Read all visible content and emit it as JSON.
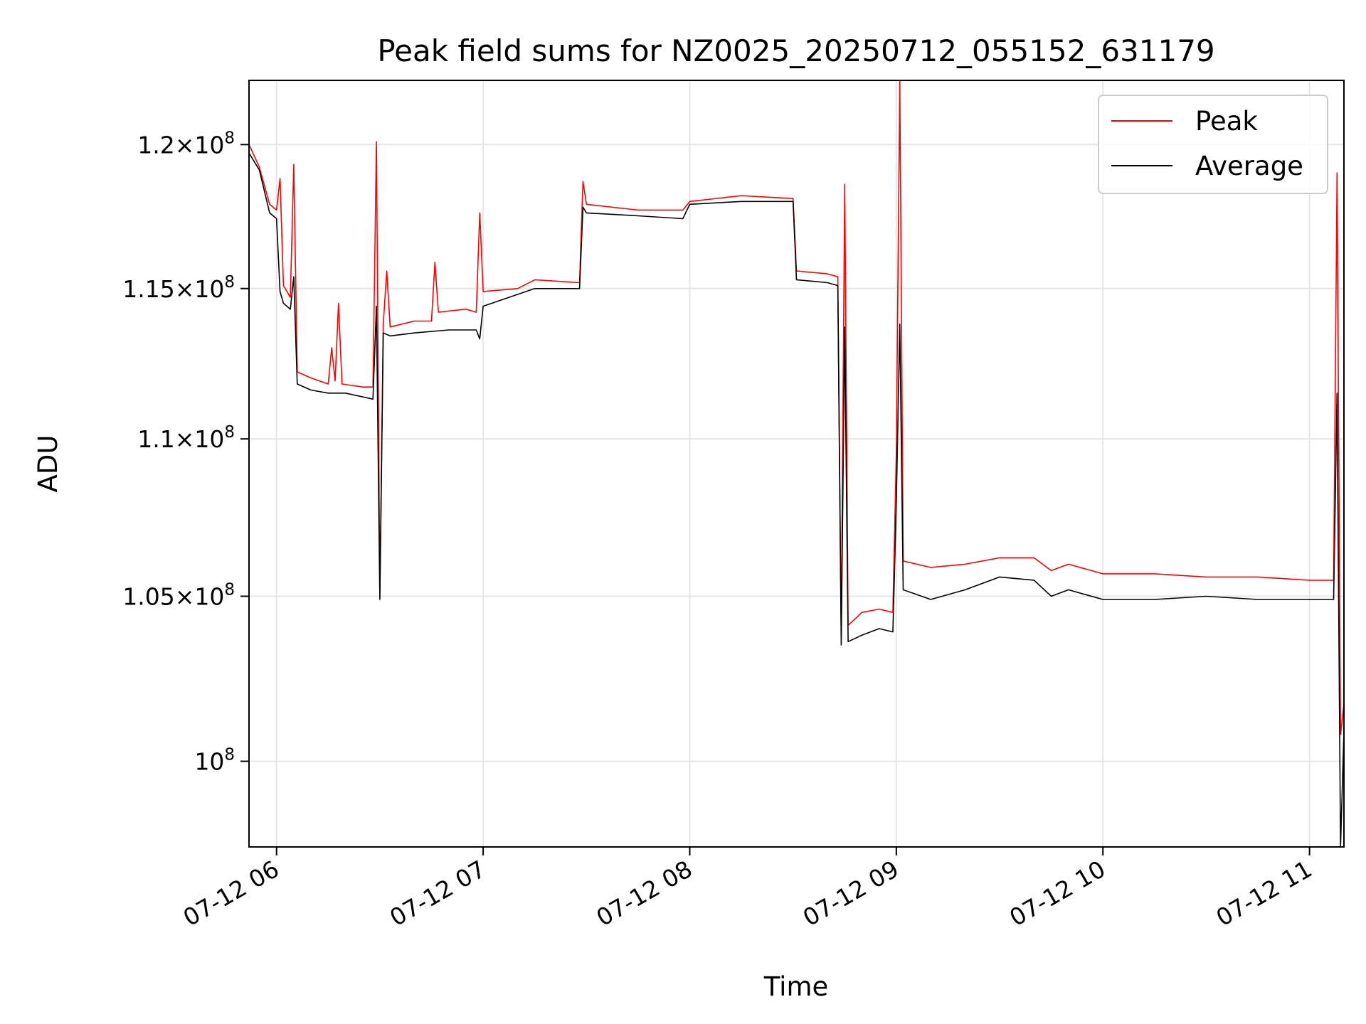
{
  "chart_data": {
    "type": "line",
    "title": "Peak field sums for NZ0025_20250712_055152_631179",
    "xlabel": "Time",
    "ylabel": "ADU",
    "yscale": "log",
    "grid": true,
    "legend_position": "top-right",
    "xlim": [
      "2025-07-12 05:52",
      "2025-07-12 11:10"
    ],
    "ylim": [
      97500000,
      122300000
    ],
    "x_ticks": [
      {
        "value": "2025-07-12 06:00",
        "label": "07-12 06"
      },
      {
        "value": "2025-07-12 07:00",
        "label": "07-12 07"
      },
      {
        "value": "2025-07-12 08:00",
        "label": "07-12 08"
      },
      {
        "value": "2025-07-12 09:00",
        "label": "07-12 09"
      },
      {
        "value": "2025-07-12 10:00",
        "label": "07-12 10"
      },
      {
        "value": "2025-07-12 11:00",
        "label": "07-12 11"
      }
    ],
    "y_ticks": [
      {
        "value": 100000000,
        "mantissa": "",
        "exp": "8"
      },
      {
        "value": 105000000,
        "mantissa": "1.05",
        "exp": "8"
      },
      {
        "value": 110000000,
        "mantissa": "1.1",
        "exp": "8"
      },
      {
        "value": 115000000,
        "mantissa": "1.15",
        "exp": "8"
      },
      {
        "value": 120000000,
        "mantissa": "1.2",
        "exp": "8"
      }
    ],
    "series": [
      {
        "name": "Peak",
        "color": "#ff0000",
        "points": [
          [
            "2025-07-12 05:52",
            120000000
          ],
          [
            "2025-07-12 05:55",
            119200000
          ],
          [
            "2025-07-12 05:58",
            117900000
          ],
          [
            "2025-07-12 06:00",
            117700000
          ],
          [
            "2025-07-12 06:01",
            118800000
          ],
          [
            "2025-07-12 06:02",
            115100000
          ],
          [
            "2025-07-12 06:04",
            114700000
          ],
          [
            "2025-07-12 06:05",
            119300000
          ],
          [
            "2025-07-12 06:06",
            112200000
          ],
          [
            "2025-07-12 06:10",
            112000000
          ],
          [
            "2025-07-12 06:15",
            111800000
          ],
          [
            "2025-07-12 06:16",
            113000000
          ],
          [
            "2025-07-12 06:17",
            111900000
          ],
          [
            "2025-07-12 06:18",
            114500000
          ],
          [
            "2025-07-12 06:19",
            111800000
          ],
          [
            "2025-07-12 06:25",
            111700000
          ],
          [
            "2025-07-12 06:28",
            111700000
          ],
          [
            "2025-07-12 06:29",
            120100000
          ],
          [
            "2025-07-12 06:30",
            105100000
          ],
          [
            "2025-07-12 06:31",
            113800000
          ],
          [
            "2025-07-12 06:32",
            115600000
          ],
          [
            "2025-07-12 06:33",
            113700000
          ],
          [
            "2025-07-12 06:40",
            113900000
          ],
          [
            "2025-07-12 06:45",
            113900000
          ],
          [
            "2025-07-12 06:46",
            115900000
          ],
          [
            "2025-07-12 06:47",
            114200000
          ],
          [
            "2025-07-12 06:55",
            114300000
          ],
          [
            "2025-07-12 06:58",
            114200000
          ],
          [
            "2025-07-12 06:59",
            117600000
          ],
          [
            "2025-07-12 07:00",
            114900000
          ],
          [
            "2025-07-12 07:10",
            115000000
          ],
          [
            "2025-07-12 07:15",
            115300000
          ],
          [
            "2025-07-12 07:28",
            115200000
          ],
          [
            "2025-07-12 07:29",
            118700000
          ],
          [
            "2025-07-12 07:30",
            117900000
          ],
          [
            "2025-07-12 07:45",
            117700000
          ],
          [
            "2025-07-12 07:58",
            117700000
          ],
          [
            "2025-07-12 08:00",
            118000000
          ],
          [
            "2025-07-12 08:15",
            118200000
          ],
          [
            "2025-07-12 08:30",
            118100000
          ],
          [
            "2025-07-12 08:31",
            115600000
          ],
          [
            "2025-07-12 08:40",
            115500000
          ],
          [
            "2025-07-12 08:43",
            115400000
          ],
          [
            "2025-07-12 08:44",
            103800000
          ],
          [
            "2025-07-12 08:45",
            118600000
          ],
          [
            "2025-07-12 08:46",
            104100000
          ],
          [
            "2025-07-12 08:50",
            104500000
          ],
          [
            "2025-07-12 08:55",
            104600000
          ],
          [
            "2025-07-12 08:59",
            104500000
          ],
          [
            "2025-07-12 09:00",
            109500000
          ],
          [
            "2025-07-12 09:01",
            122300000
          ],
          [
            "2025-07-12 09:02",
            106100000
          ],
          [
            "2025-07-12 09:10",
            105900000
          ],
          [
            "2025-07-12 09:20",
            106000000
          ],
          [
            "2025-07-12 09:30",
            106200000
          ],
          [
            "2025-07-12 09:40",
            106200000
          ],
          [
            "2025-07-12 09:45",
            105800000
          ],
          [
            "2025-07-12 09:50",
            106000000
          ],
          [
            "2025-07-12 10:00",
            105700000
          ],
          [
            "2025-07-12 10:15",
            105700000
          ],
          [
            "2025-07-12 10:30",
            105600000
          ],
          [
            "2025-07-12 10:45",
            105600000
          ],
          [
            "2025-07-12 11:00",
            105500000
          ],
          [
            "2025-07-12 11:07",
            105500000
          ],
          [
            "2025-07-12 11:08",
            119000000
          ],
          [
            "2025-07-12 11:09",
            100800000
          ],
          [
            "2025-07-12 11:10",
            101700000
          ]
        ]
      },
      {
        "name": "Average",
        "color": "#000000",
        "points": [
          [
            "2025-07-12 05:52",
            119700000
          ],
          [
            "2025-07-12 05:55",
            119100000
          ],
          [
            "2025-07-12 05:58",
            117600000
          ],
          [
            "2025-07-12 06:00",
            117400000
          ],
          [
            "2025-07-12 06:01",
            114900000
          ],
          [
            "2025-07-12 06:02",
            114500000
          ],
          [
            "2025-07-12 06:04",
            114300000
          ],
          [
            "2025-07-12 06:05",
            115400000
          ],
          [
            "2025-07-12 06:06",
            111800000
          ],
          [
            "2025-07-12 06:10",
            111600000
          ],
          [
            "2025-07-12 06:15",
            111500000
          ],
          [
            "2025-07-12 06:20",
            111500000
          ],
          [
            "2025-07-12 06:28",
            111300000
          ],
          [
            "2025-07-12 06:29",
            114400000
          ],
          [
            "2025-07-12 06:30",
            104900000
          ],
          [
            "2025-07-12 06:31",
            113500000
          ],
          [
            "2025-07-12 06:33",
            113400000
          ],
          [
            "2025-07-12 06:40",
            113500000
          ],
          [
            "2025-07-12 06:50",
            113600000
          ],
          [
            "2025-07-12 06:58",
            113600000
          ],
          [
            "2025-07-12 06:59",
            113300000
          ],
          [
            "2025-07-12 07:00",
            114400000
          ],
          [
            "2025-07-12 07:10",
            114800000
          ],
          [
            "2025-07-12 07:15",
            115000000
          ],
          [
            "2025-07-12 07:28",
            115000000
          ],
          [
            "2025-07-12 07:29",
            117800000
          ],
          [
            "2025-07-12 07:30",
            117600000
          ],
          [
            "2025-07-12 07:45",
            117500000
          ],
          [
            "2025-07-12 07:58",
            117400000
          ],
          [
            "2025-07-12 08:00",
            117900000
          ],
          [
            "2025-07-12 08:15",
            118000000
          ],
          [
            "2025-07-12 08:30",
            118000000
          ],
          [
            "2025-07-12 08:31",
            115300000
          ],
          [
            "2025-07-12 08:40",
            115200000
          ],
          [
            "2025-07-12 08:43",
            115100000
          ],
          [
            "2025-07-12 08:44",
            103500000
          ],
          [
            "2025-07-12 08:45",
            113700000
          ],
          [
            "2025-07-12 08:46",
            103600000
          ],
          [
            "2025-07-12 08:50",
            103800000
          ],
          [
            "2025-07-12 08:55",
            104000000
          ],
          [
            "2025-07-12 08:59",
            103900000
          ],
          [
            "2025-07-12 09:00",
            107900000
          ],
          [
            "2025-07-12 09:01",
            113800000
          ],
          [
            "2025-07-12 09:02",
            105200000
          ],
          [
            "2025-07-12 09:10",
            104900000
          ],
          [
            "2025-07-12 09:20",
            105200000
          ],
          [
            "2025-07-12 09:30",
            105600000
          ],
          [
            "2025-07-12 09:40",
            105500000
          ],
          [
            "2025-07-12 09:45",
            105000000
          ],
          [
            "2025-07-12 09:50",
            105200000
          ],
          [
            "2025-07-12 10:00",
            104900000
          ],
          [
            "2025-07-12 10:15",
            104900000
          ],
          [
            "2025-07-12 10:30",
            105000000
          ],
          [
            "2025-07-12 10:45",
            104900000
          ],
          [
            "2025-07-12 11:00",
            104900000
          ],
          [
            "2025-07-12 11:07",
            104900000
          ],
          [
            "2025-07-12 11:08",
            111500000
          ],
          [
            "2025-07-12 11:09",
            97500000
          ],
          [
            "2025-07-12 11:10",
            100900000
          ]
        ]
      }
    ]
  }
}
